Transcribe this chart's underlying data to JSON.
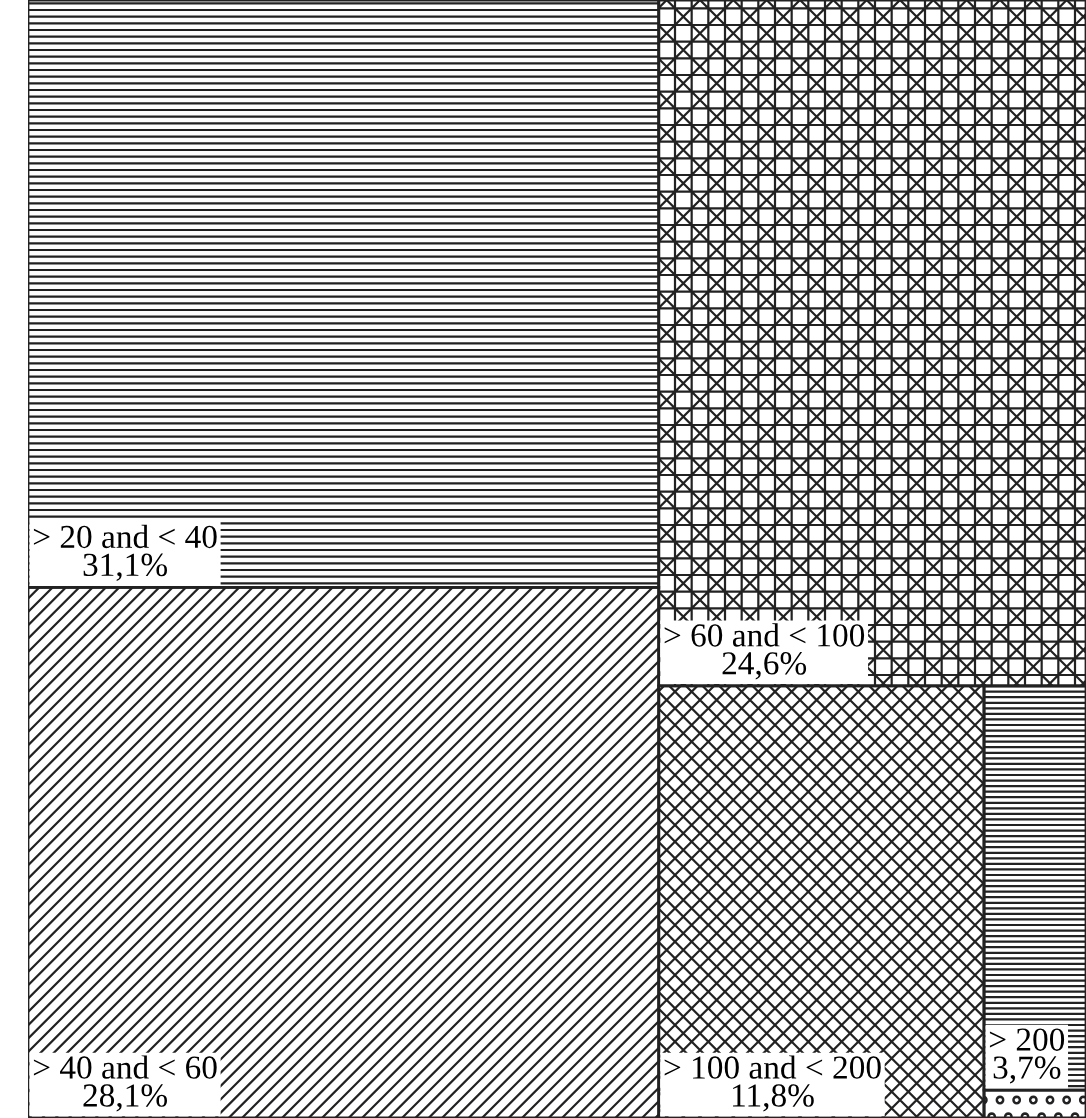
{
  "chart_data": {
    "type": "other",
    "categories": [
      "> 20 and < 40",
      "> 40 and < 60",
      "> 60 and < 100",
      "> 100 and < 200",
      "> 200",
      null
    ],
    "values": [
      31.1,
      28.1,
      24.6,
      11.8,
      3.7,
      null
    ],
    "value_labels": [
      "31,1%",
      "28,1%",
      "24,6%",
      "11,8%",
      "3,7%",
      null
    ]
  }
}
